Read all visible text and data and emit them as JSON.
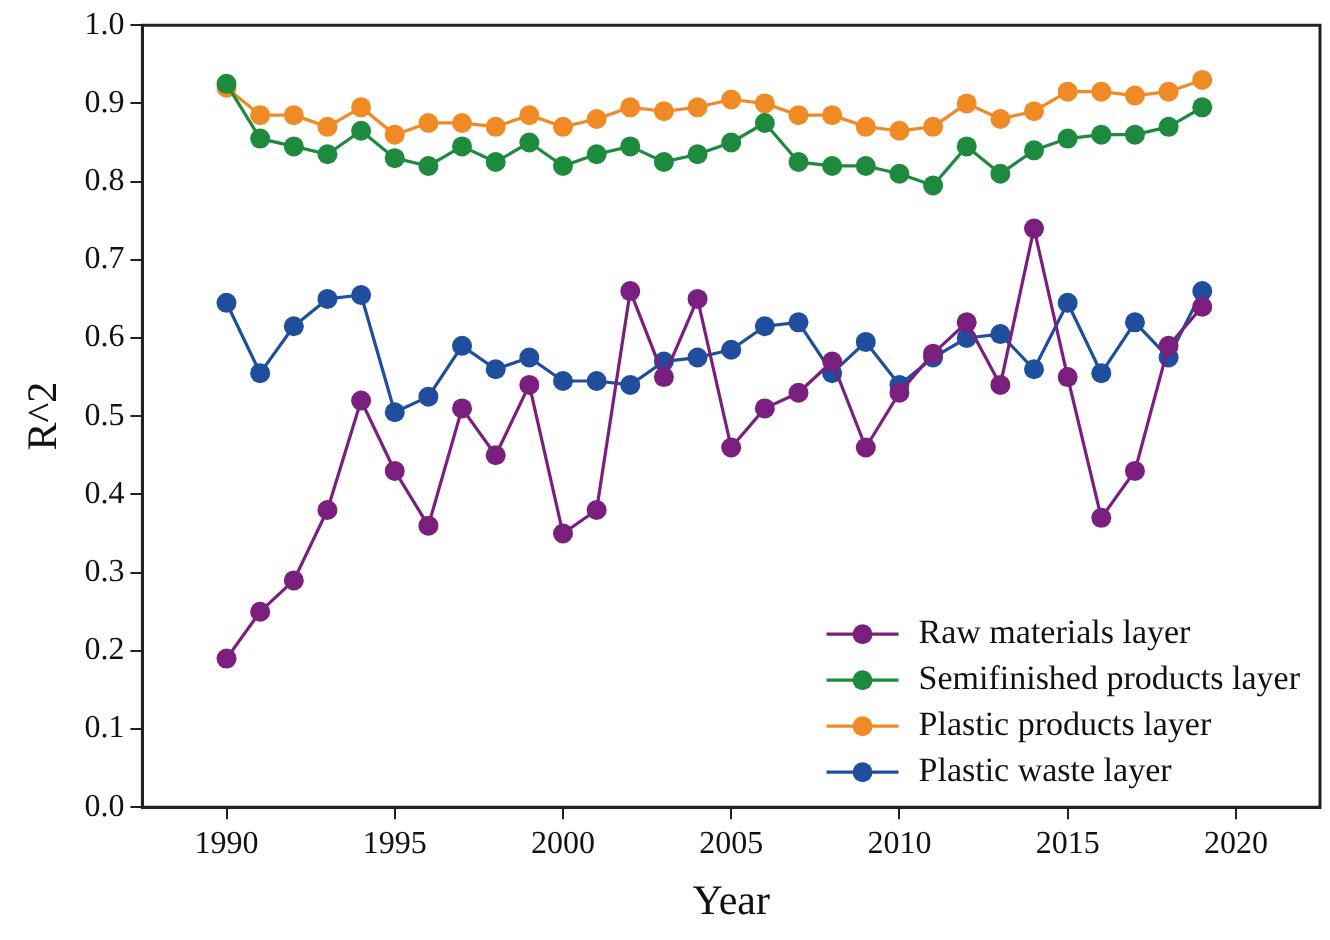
{
  "chart_data": {
    "type": "line",
    "xlabel": "Year",
    "ylabel": "R^2",
    "x": [
      1990,
      1991,
      1992,
      1993,
      1994,
      1995,
      1996,
      1997,
      1998,
      1999,
      2000,
      2001,
      2002,
      2003,
      2004,
      2005,
      2006,
      2007,
      2008,
      2009,
      2010,
      2011,
      2012,
      2013,
      2014,
      2015,
      2016,
      2017,
      2018,
      2019
    ],
    "series": [
      {
        "name": "Raw materials layer",
        "color": "#7b1f7e",
        "values": [
          0.19,
          0.25,
          0.29,
          0.38,
          0.52,
          0.43,
          0.36,
          0.51,
          0.45,
          0.54,
          0.35,
          0.38,
          0.66,
          0.55,
          0.65,
          0.46,
          0.51,
          0.53,
          0.57,
          0.46,
          0.53,
          0.58,
          0.62,
          0.54,
          0.74,
          0.55,
          0.37,
          0.43,
          0.59,
          0.64
        ]
      },
      {
        "name": "Semifinished products layer",
        "color": "#1e8a3e",
        "values": [
          0.925,
          0.855,
          0.845,
          0.835,
          0.865,
          0.83,
          0.82,
          0.845,
          0.825,
          0.85,
          0.82,
          0.835,
          0.845,
          0.825,
          0.835,
          0.85,
          0.875,
          0.825,
          0.82,
          0.82,
          0.81,
          0.795,
          0.845,
          0.81,
          0.84,
          0.855,
          0.86,
          0.86,
          0.87,
          0.895
        ]
      },
      {
        "name": "Plastic products layer",
        "color": "#f08a24",
        "values": [
          0.92,
          0.885,
          0.885,
          0.87,
          0.895,
          0.86,
          0.875,
          0.875,
          0.87,
          0.885,
          0.87,
          0.88,
          0.895,
          0.89,
          0.895,
          0.905,
          0.9,
          0.885,
          0.885,
          0.87,
          0.865,
          0.87,
          0.9,
          0.88,
          0.89,
          0.915,
          0.915,
          0.91,
          0.915,
          0.93
        ]
      },
      {
        "name": "Plastic waste layer",
        "color": "#1f4e9c",
        "values": [
          0.645,
          0.555,
          0.615,
          0.65,
          0.655,
          0.505,
          0.525,
          0.59,
          0.56,
          0.575,
          0.545,
          0.545,
          0.54,
          0.57,
          0.575,
          0.585,
          0.615,
          0.62,
          0.555,
          0.595,
          0.54,
          0.575,
          0.6,
          0.605,
          0.56,
          0.645,
          0.555,
          0.62,
          0.575,
          0.66
        ]
      }
    ],
    "xlim": [
      1987.5,
      2022.5
    ],
    "xticks": [
      1990,
      1995,
      2000,
      2005,
      2010,
      2015,
      2020
    ],
    "ylim": [
      0,
      1
    ],
    "yticks": [
      {
        "value": 0,
        "label": "0.0"
      },
      0.1,
      0.2,
      0.3,
      0.4,
      0.5,
      0.6,
      0.7,
      0.8,
      0.9,
      {
        "value": 1,
        "label": "1.0"
      }
    ],
    "grid": false,
    "legend": "bottom right",
    "marker": "circle",
    "line_style": "solid"
  }
}
